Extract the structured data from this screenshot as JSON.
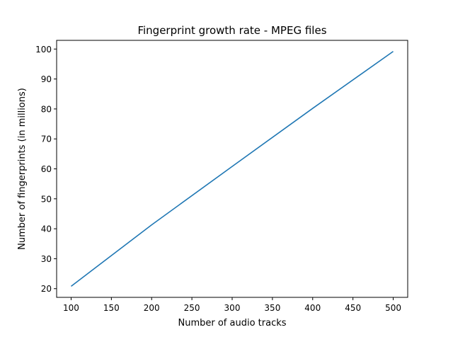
{
  "chart_data": {
    "type": "line",
    "title": "Fingerprint growth rate - MPEG files",
    "xlabel": "Number of audio tracks",
    "ylabel": "Number of fingerprints (in millions)",
    "xlim": [
      82,
      518
    ],
    "ylim": [
      17.1,
      102.9
    ],
    "x_ticks": [
      100,
      150,
      200,
      250,
      300,
      350,
      400,
      450,
      500
    ],
    "y_ticks": [
      20,
      30,
      40,
      50,
      60,
      70,
      80,
      90,
      100
    ],
    "grid": false,
    "series": [
      {
        "color": "#1f77b4",
        "x": [
          100,
          200,
          300,
          400,
          500
        ],
        "y": [
          20.8,
          41.3,
          60.8,
          80.2,
          99.2
        ]
      }
    ]
  }
}
